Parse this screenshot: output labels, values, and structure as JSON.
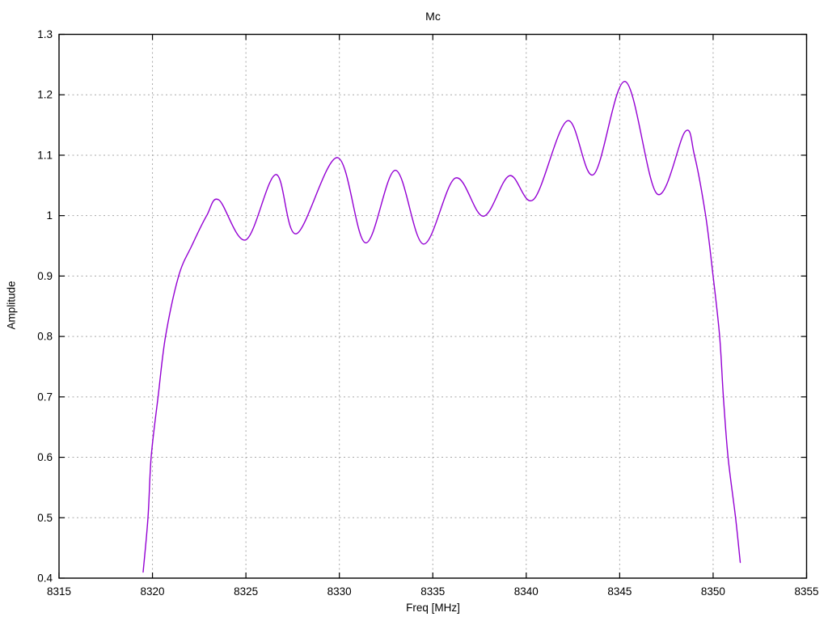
{
  "title": "Mc",
  "colors": {
    "background": "#ffffff",
    "line": "#9400d3",
    "grid": "#a8a8a8",
    "border": "#000000",
    "text": "#000000"
  },
  "chart_data": {
    "type": "line",
    "title": "Mc",
    "xlabel": "Freq [MHz]",
    "ylabel": "Amplitude",
    "xlim": [
      8315,
      8355
    ],
    "ylim": [
      0.4,
      1.3
    ],
    "xticks": [
      8315,
      8320,
      8325,
      8330,
      8335,
      8340,
      8345,
      8350,
      8355
    ],
    "yticks": [
      0.4,
      0.5,
      0.6,
      0.7,
      0.8,
      0.9,
      1,
      1.1,
      1.2,
      1.3
    ],
    "grid": true,
    "legend": "none",
    "line_color": "#9400d3",
    "series": [
      {
        "name": "Mc",
        "x": [
          8319.5,
          8319.76,
          8319.93,
          8320.3,
          8320.7,
          8321.4,
          8322.1,
          8322.9,
          8323.55,
          8325.0,
          8326.6,
          8327.7,
          8329.9,
          8331.4,
          8333.0,
          8334.5,
          8336.2,
          8337.7,
          8339.1,
          8340.4,
          8342.2,
          8343.6,
          8345.3,
          8347.0,
          8348.5,
          8349.0,
          8349.6,
          8350.0,
          8350.35,
          8350.55,
          8350.8,
          8351.2,
          8351.45
        ],
        "y": [
          0.41,
          0.5,
          0.6,
          0.7,
          0.8,
          0.9,
          0.95,
          1.0,
          1.026,
          0.96,
          1.068,
          0.97,
          1.096,
          0.955,
          1.075,
          0.953,
          1.062,
          0.999,
          1.066,
          1.027,
          1.157,
          1.068,
          1.222,
          1.036,
          1.139,
          1.1,
          1.0,
          0.9,
          0.8,
          0.7,
          0.6,
          0.5,
          0.426
        ]
      }
    ]
  }
}
